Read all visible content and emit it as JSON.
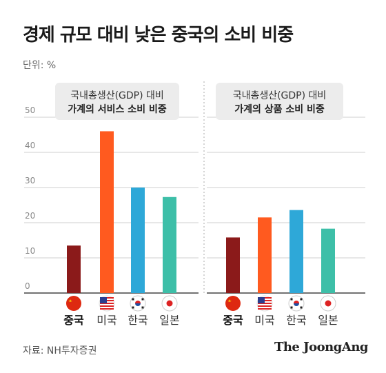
{
  "title": "경제 규모 대비 낮은 중국의 소비 비중",
  "unit": "단위: %",
  "source": "자료: NH투자증권",
  "brand": "The JoongAng",
  "colors": {
    "중국": "#8b1a1a",
    "미국": "#ff5a1f",
    "한국": "#2ea8d8",
    "일본": "#3dbfa8"
  },
  "flags": [
    "china-flag-icon",
    "usa-flag-icon",
    "korea-flag-icon",
    "japan-flag-icon"
  ],
  "chart_data": [
    {
      "type": "bar",
      "title_line1": "국내총생산(GDP) 대비",
      "title_line2": "가계의 서비스 소비 비중",
      "categories": [
        "중국",
        "미국",
        "한국",
        "일본"
      ],
      "values": [
        13.5,
        46,
        30,
        27.3
      ],
      "ylim": [
        0,
        50
      ],
      "yticks": [
        "0",
        "10",
        "20",
        "30",
        "40",
        "50"
      ],
      "grid": true
    },
    {
      "type": "bar",
      "title_line1": "국내총생산(GDP) 대비",
      "title_line2": "가계의 상품 소비 비중",
      "categories": [
        "중국",
        "미국",
        "한국",
        "일본"
      ],
      "values": [
        15.8,
        21.5,
        23.6,
        18.3
      ],
      "ylim": [
        0,
        50
      ],
      "grid": true
    }
  ]
}
